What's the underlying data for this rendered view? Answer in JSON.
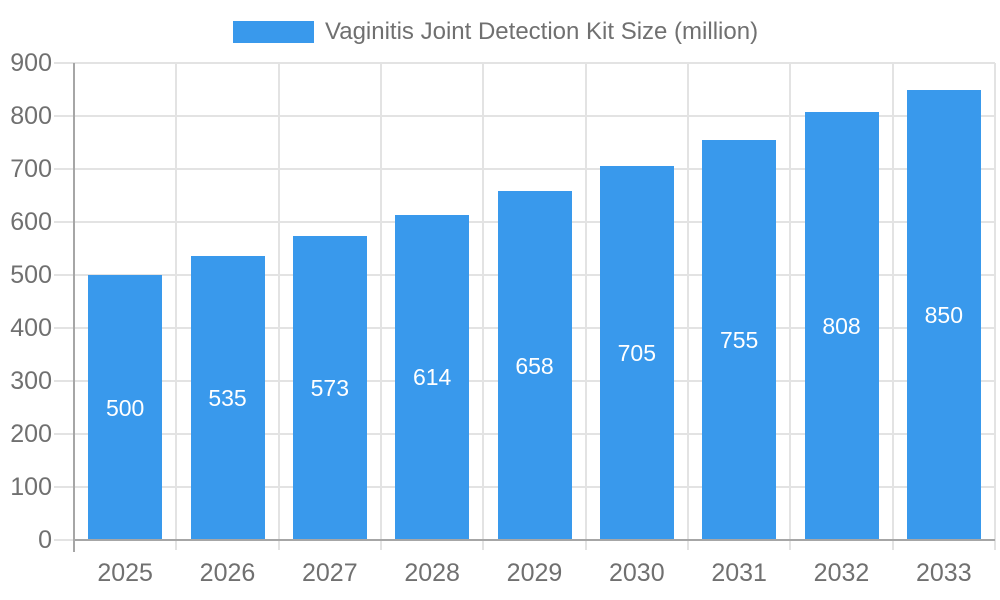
{
  "legend": {
    "label": "Vaginitis Joint Detection Kit Size (million)"
  },
  "chart_data": {
    "type": "bar",
    "title": "Vaginitis Joint Detection Kit Size (million)",
    "categories": [
      "2025",
      "2026",
      "2027",
      "2028",
      "2029",
      "2030",
      "2031",
      "2032",
      "2033"
    ],
    "values": [
      500,
      535,
      573,
      614,
      658,
      705,
      755,
      808,
      850
    ],
    "series": [
      {
        "name": "Vaginitis Joint Detection Kit Size (million)",
        "values": [
          500,
          535,
          573,
          614,
          658,
          705,
          755,
          808,
          850
        ]
      }
    ],
    "xlabel": "",
    "ylabel": "",
    "ylim": [
      0,
      900
    ],
    "ytick_step": 100,
    "grid": true,
    "legend_position": "top",
    "value_label_position": "inside-center"
  },
  "colors": {
    "bar": "#3999EC",
    "grid": "#E3E3E3",
    "axis": "#A6A6A6",
    "tick_text": "#707070",
    "legend_text": "#707070",
    "value_label_text": "#FFFFFF",
    "background": "#FFFFFF"
  }
}
